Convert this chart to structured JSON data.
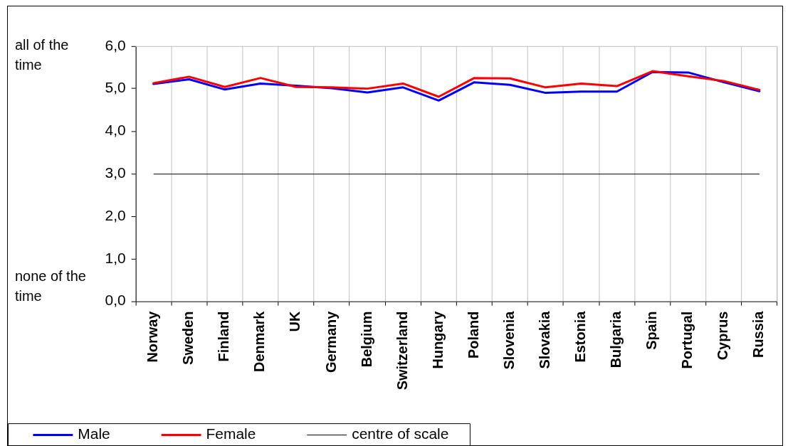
{
  "chart_data": {
    "type": "line",
    "categories": [
      "Norway",
      "Sweden",
      "Finland",
      "Denmark",
      "UK",
      "Germany",
      "Belgium",
      "Switzerland",
      "Hungary",
      "Poland",
      "Slovenia",
      "Slovakia",
      "Estonia",
      "Bulgaria",
      "Spain",
      "Portugal",
      "Cyprus",
      "Russia"
    ],
    "series": [
      {
        "name": "Male",
        "color": "#0000ff",
        "values": [
          5.11,
          5.22,
          4.98,
          5.12,
          5.07,
          5.01,
          4.91,
          5.03,
          4.72,
          5.15,
          5.09,
          4.9,
          4.93,
          4.93,
          5.39,
          5.38,
          5.15,
          4.94
        ]
      },
      {
        "name": "Female",
        "color": "#ff0000",
        "values": [
          5.13,
          5.28,
          5.04,
          5.25,
          5.04,
          5.03,
          5.0,
          5.12,
          4.81,
          5.25,
          5.24,
          5.03,
          5.12,
          5.06,
          5.41,
          5.29,
          5.18,
          4.97
        ]
      }
    ],
    "ylim": [
      0,
      6
    ],
    "yticks": [
      {
        "value": 0,
        "label": "0,0"
      },
      {
        "value": 1,
        "label": "1,0"
      },
      {
        "value": 2,
        "label": "2,0"
      },
      {
        "value": 3,
        "label": "3,0"
      },
      {
        "value": 4,
        "label": "4,0"
      },
      {
        "value": 5,
        "label": "5,0"
      },
      {
        "value": 6,
        "label": "6,0"
      }
    ],
    "ref_lines": [
      {
        "axis": "y",
        "value": 3,
        "label": "centre of scale",
        "color": "#000000"
      }
    ],
    "annotations": [
      "all of the time",
      "none of the time"
    ],
    "grid": "x",
    "legend": "bottom left",
    "marker": "none",
    "line_style": "solid"
  }
}
